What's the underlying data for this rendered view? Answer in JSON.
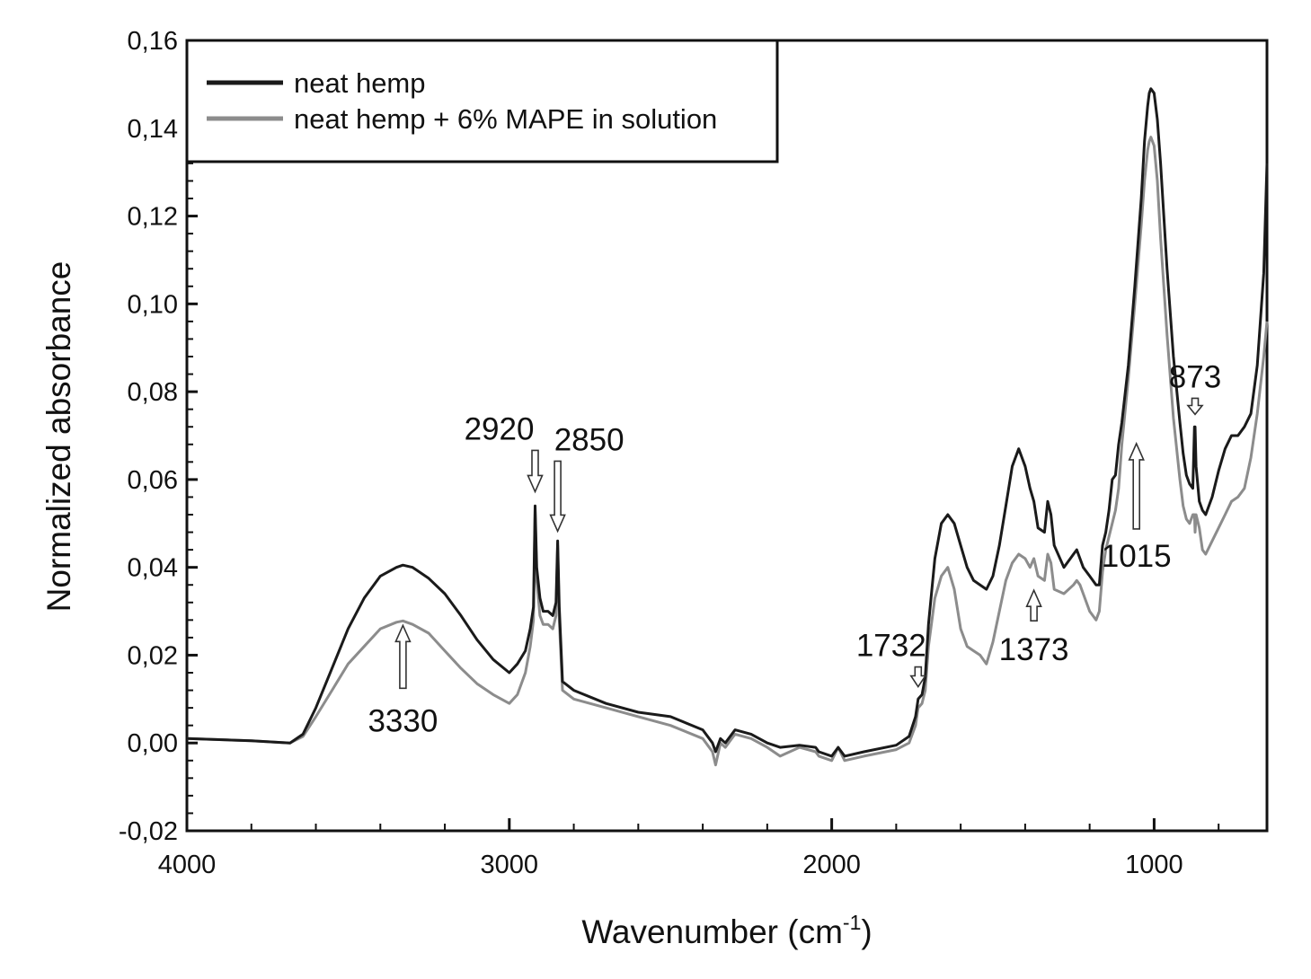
{
  "chart_data": {
    "type": "line",
    "xlabel": "Wavenumber (cm",
    "xlabel_sup": "-1",
    "xlabel_suffix": ")",
    "ylabel": "Normalized absorbance",
    "xlim": [
      4000,
      650
    ],
    "ylim": [
      -0.02,
      0.16
    ],
    "x_reversed": true,
    "x_ticks": [
      4000,
      3000,
      2000,
      1000
    ],
    "x_tick_labels": [
      "4000",
      "3000",
      "2000",
      "1000"
    ],
    "y_ticks": [
      -0.02,
      0.0,
      0.02,
      0.04,
      0.06,
      0.08,
      0.1,
      0.12,
      0.14,
      0.16
    ],
    "y_tick_labels": [
      "-0,02",
      "0,00",
      "0,02",
      "0,04",
      "0,06",
      "0,08",
      "0,10",
      "0,12",
      "0,14",
      "0,16"
    ],
    "grid": false,
    "legend_position": "top-left",
    "series": [
      {
        "name": "neat hemp",
        "color": "#1a1a1a",
        "x": [
          4000,
          3800,
          3680,
          3640,
          3600,
          3550,
          3500,
          3450,
          3400,
          3350,
          3330,
          3300,
          3250,
          3200,
          3150,
          3100,
          3050,
          3000,
          2975,
          2950,
          2935,
          2925,
          2920,
          2915,
          2905,
          2895,
          2880,
          2865,
          2855,
          2850,
          2845,
          2835,
          2800,
          2700,
          2600,
          2500,
          2400,
          2370,
          2360,
          2345,
          2330,
          2300,
          2250,
          2200,
          2160,
          2100,
          2050,
          2040,
          2000,
          1980,
          1960,
          1900,
          1800,
          1760,
          1740,
          1732,
          1720,
          1710,
          1700,
          1680,
          1660,
          1640,
          1620,
          1600,
          1580,
          1560,
          1540,
          1520,
          1500,
          1480,
          1460,
          1440,
          1420,
          1400,
          1385,
          1373,
          1360,
          1340,
          1330,
          1320,
          1310,
          1280,
          1250,
          1240,
          1230,
          1220,
          1200,
          1180,
          1170,
          1160,
          1150,
          1140,
          1130,
          1120,
          1110,
          1100,
          1080,
          1060,
          1040,
          1030,
          1020,
          1015,
          1010,
          1000,
          990,
          980,
          960,
          940,
          920,
          910,
          900,
          890,
          880,
          875,
          873,
          870,
          860,
          850,
          840,
          820,
          800,
          780,
          760,
          740,
          720,
          700,
          680,
          660,
          650
        ],
        "y": [
          0.001,
          0.0005,
          0.0,
          0.002,
          0.008,
          0.017,
          0.026,
          0.033,
          0.038,
          0.04,
          0.0405,
          0.04,
          0.0375,
          0.034,
          0.029,
          0.0235,
          0.019,
          0.016,
          0.018,
          0.021,
          0.026,
          0.031,
          0.054,
          0.04,
          0.033,
          0.03,
          0.03,
          0.029,
          0.032,
          0.046,
          0.031,
          0.014,
          0.012,
          0.009,
          0.007,
          0.006,
          0.003,
          0.0,
          -0.002,
          0.001,
          0.0,
          0.003,
          0.002,
          0.0,
          -0.001,
          -0.0005,
          -0.001,
          -0.002,
          -0.003,
          -0.001,
          -0.003,
          -0.002,
          -0.0005,
          0.0015,
          0.006,
          0.01,
          0.011,
          0.015,
          0.027,
          0.042,
          0.05,
          0.052,
          0.05,
          0.045,
          0.04,
          0.037,
          0.036,
          0.035,
          0.038,
          0.045,
          0.054,
          0.063,
          0.067,
          0.063,
          0.058,
          0.055,
          0.049,
          0.048,
          0.055,
          0.052,
          0.045,
          0.04,
          0.043,
          0.044,
          0.042,
          0.04,
          0.038,
          0.036,
          0.036,
          0.045,
          0.048,
          0.053,
          0.06,
          0.061,
          0.068,
          0.073,
          0.086,
          0.104,
          0.124,
          0.137,
          0.145,
          0.148,
          0.149,
          0.148,
          0.142,
          0.132,
          0.108,
          0.088,
          0.073,
          0.066,
          0.061,
          0.059,
          0.058,
          0.072,
          0.072,
          0.063,
          0.055,
          0.053,
          0.052,
          0.056,
          0.062,
          0.067,
          0.07,
          0.07,
          0.072,
          0.075,
          0.086,
          0.107,
          0.132
        ]
      },
      {
        "name": "neat hemp + 6% MAPE in solution",
        "color": "#8c8c8c",
        "x": [
          4000,
          3800,
          3680,
          3640,
          3600,
          3550,
          3500,
          3450,
          3400,
          3350,
          3330,
          3300,
          3250,
          3200,
          3150,
          3100,
          3050,
          3000,
          2975,
          2950,
          2935,
          2925,
          2920,
          2915,
          2905,
          2895,
          2880,
          2865,
          2855,
          2850,
          2845,
          2835,
          2800,
          2700,
          2600,
          2500,
          2400,
          2370,
          2360,
          2345,
          2330,
          2300,
          2250,
          2200,
          2160,
          2100,
          2050,
          2040,
          2000,
          1980,
          1960,
          1900,
          1800,
          1760,
          1740,
          1732,
          1720,
          1710,
          1700,
          1680,
          1660,
          1640,
          1620,
          1600,
          1580,
          1560,
          1540,
          1520,
          1500,
          1480,
          1460,
          1440,
          1420,
          1400,
          1385,
          1373,
          1360,
          1340,
          1330,
          1320,
          1310,
          1280,
          1250,
          1240,
          1230,
          1220,
          1200,
          1180,
          1170,
          1160,
          1150,
          1140,
          1130,
          1120,
          1110,
          1100,
          1080,
          1060,
          1040,
          1030,
          1020,
          1015,
          1010,
          1000,
          990,
          980,
          960,
          940,
          920,
          910,
          900,
          890,
          880,
          875,
          873,
          870,
          860,
          850,
          840,
          820,
          800,
          780,
          760,
          740,
          720,
          700,
          680,
          660,
          650
        ],
        "y": [
          0.001,
          0.0005,
          0.0,
          0.0015,
          0.006,
          0.012,
          0.018,
          0.022,
          0.026,
          0.0275,
          0.0278,
          0.027,
          0.025,
          0.021,
          0.017,
          0.0135,
          0.011,
          0.009,
          0.011,
          0.016,
          0.022,
          0.028,
          0.053,
          0.037,
          0.029,
          0.027,
          0.027,
          0.026,
          0.029,
          0.045,
          0.028,
          0.012,
          0.01,
          0.008,
          0.006,
          0.004,
          0.001,
          -0.002,
          -0.005,
          0.0,
          -0.001,
          0.002,
          0.001,
          -0.001,
          -0.003,
          -0.001,
          -0.002,
          -0.003,
          -0.004,
          -0.001,
          -0.004,
          -0.003,
          -0.0015,
          0.0,
          0.004,
          0.008,
          0.009,
          0.012,
          0.022,
          0.033,
          0.038,
          0.04,
          0.035,
          0.026,
          0.022,
          0.021,
          0.02,
          0.018,
          0.023,
          0.03,
          0.037,
          0.041,
          0.043,
          0.042,
          0.04,
          0.042,
          0.038,
          0.037,
          0.043,
          0.041,
          0.035,
          0.034,
          0.036,
          0.037,
          0.036,
          0.034,
          0.03,
          0.028,
          0.03,
          0.039,
          0.044,
          0.047,
          0.05,
          0.053,
          0.058,
          0.068,
          0.083,
          0.1,
          0.118,
          0.128,
          0.135,
          0.137,
          0.138,
          0.136,
          0.128,
          0.115,
          0.093,
          0.074,
          0.06,
          0.054,
          0.051,
          0.05,
          0.052,
          0.052,
          0.048,
          0.052,
          0.049,
          0.044,
          0.043,
          0.046,
          0.049,
          0.052,
          0.055,
          0.056,
          0.058,
          0.065,
          0.075,
          0.088,
          0.096
        ]
      }
    ],
    "annotations": [
      {
        "label": "3330",
        "x": 3330,
        "y": 0.028,
        "direction": "up"
      },
      {
        "label": "2920",
        "x": 2920,
        "y": 0.056,
        "direction": "down"
      },
      {
        "label": "2850",
        "x": 2850,
        "y": 0.047,
        "direction": "down"
      },
      {
        "label": "1732",
        "x": 1732,
        "y": 0.012,
        "direction": "down"
      },
      {
        "label": "1373",
        "x": 1373,
        "y": 0.036,
        "direction": "up"
      },
      {
        "label": "1015",
        "x": 1055,
        "y": 0.069,
        "direction": "up"
      },
      {
        "label": "873",
        "x": 873,
        "y": 0.074,
        "direction": "down"
      }
    ]
  }
}
